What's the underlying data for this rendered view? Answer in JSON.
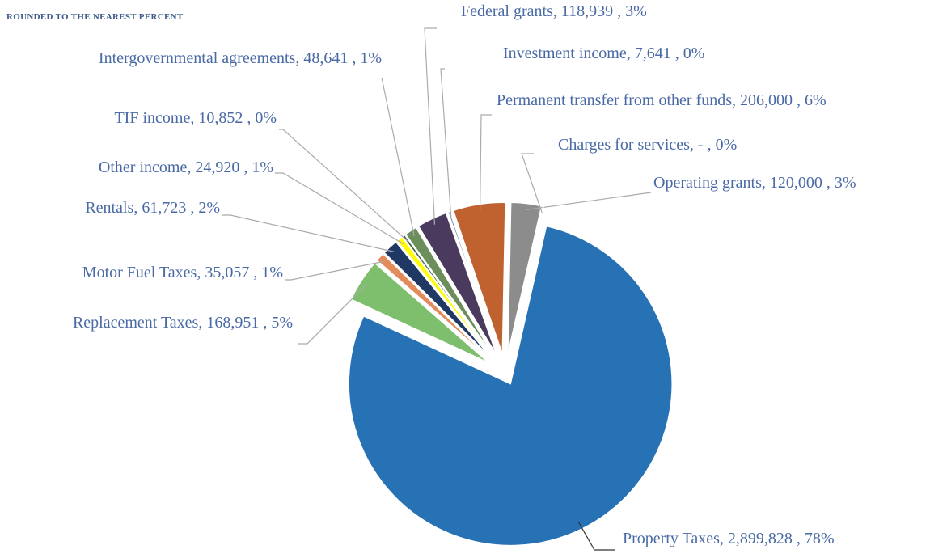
{
  "chart_data": {
    "type": "pie",
    "subtitle": "ROUNDED TO THE NEAREST PERCENT",
    "categories": [
      "Operating grants",
      "Charges for services",
      "Property Taxes",
      "Replacement Taxes",
      "Motor Fuel Taxes",
      "Rentals",
      "Other income",
      "TIF income",
      "Intergovernmental agreements",
      "Federal grants",
      "Investment income",
      "Permanent transfer from other funds"
    ],
    "values": [
      120000,
      0,
      2899828,
      168951,
      35057,
      61723,
      24920,
      10852,
      48641,
      118939,
      7641,
      206000
    ],
    "labels": [
      "Operating grants, 120,000 , 3%",
      "Charges for services, - , 0%",
      "Property Taxes, 2,899,828 , 78%",
      "Replacement Taxes, 168,951 , 5%",
      "Motor Fuel Taxes, 35,057 , 1%",
      "Rentals, 61,723 , 2%",
      "Other income, 24,920 , 1%",
      "TIF income, 10,852 , 0%",
      "Intergovernmental agreements, 48,641 , 1%",
      "Federal grants, 118,939 , 3%",
      "Investment income, 7,641 , 0%",
      "Permanent transfer from other funds, 206,000 , 6%"
    ],
    "colors": [
      "#8c8c8c",
      "#222222",
      "#2771b5",
      "#7dbf6c",
      "#e38b5a",
      "#1f3864",
      "#ffff00",
      "#3d5c3d",
      "#6b8e5a",
      "#4a3b5e",
      "#5b6e8a",
      "#c0622f"
    ]
  }
}
